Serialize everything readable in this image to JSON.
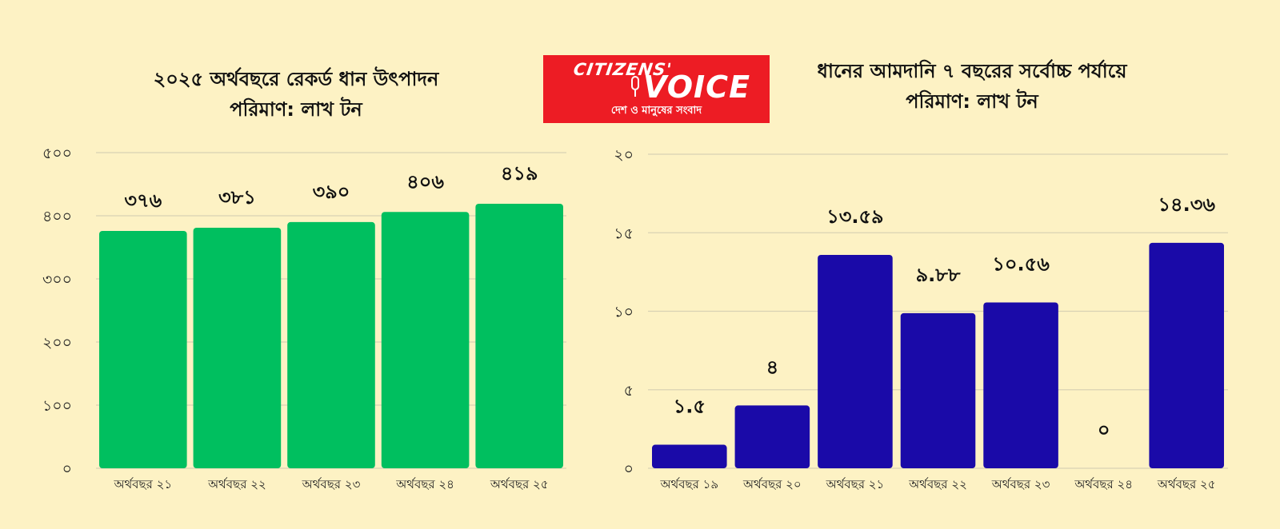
{
  "logo": {
    "line1": "CITIZENS'",
    "line2": "VOICE",
    "tagline": "দেশ ও মানুষের সংবাদ",
    "color": "#ed1c24"
  },
  "chart_data": [
    {
      "type": "bar",
      "title": "২০২৫ অর্থবছরে রেকর্ড ধান উৎপাদন",
      "subtitle": "পরিমাণ: লাখ টন",
      "categories": [
        "অর্থবছর ২১",
        "অর্থবছর ২২",
        "অর্থবছর ২৩",
        "অর্থবছর ২৪",
        "অর্থবছর ২৫"
      ],
      "values": [
        376,
        381,
        390,
        406,
        419
      ],
      "value_labels": [
        "৩৭৬",
        "৩৮১",
        "৩৯০",
        "৪০৬",
        "৪১৯"
      ],
      "ylim": [
        0,
        500
      ],
      "yticks": [
        0,
        100,
        200,
        300,
        400,
        500
      ],
      "ytick_labels": [
        "০",
        "১০০",
        "২০০",
        "৩০০",
        "৪০০",
        "৫০০"
      ],
      "grid": true,
      "color": "#00bf5f"
    },
    {
      "type": "bar",
      "title": "ধানের আমদানি ৭ বছরের সর্বোচ্চ পর্যায়ে",
      "subtitle": "পরিমাণ: লাখ টন",
      "categories": [
        "অর্থবছর ১৯",
        "অর্থবছর ২০",
        "অর্থবছর ২১",
        "অর্থবছর ২২",
        "অর্থবছর ২৩",
        "অর্থবছর ২৪",
        "অর্থবছর ২৫"
      ],
      "values": [
        1.5,
        4,
        13.59,
        9.88,
        10.56,
        0,
        14.36
      ],
      "value_labels": [
        "১.৫",
        "৪",
        "১৩.৫৯",
        "৯.৮৮",
        "১০.৫৬",
        "০",
        "১৪.৩৬"
      ],
      "ylim": [
        0,
        20
      ],
      "yticks": [
        0,
        5,
        10,
        15,
        20
      ],
      "ytick_labels": [
        "০",
        "৫",
        "১০",
        "১৫",
        "২০"
      ],
      "grid": true,
      "color": "#1a0aa8"
    }
  ]
}
